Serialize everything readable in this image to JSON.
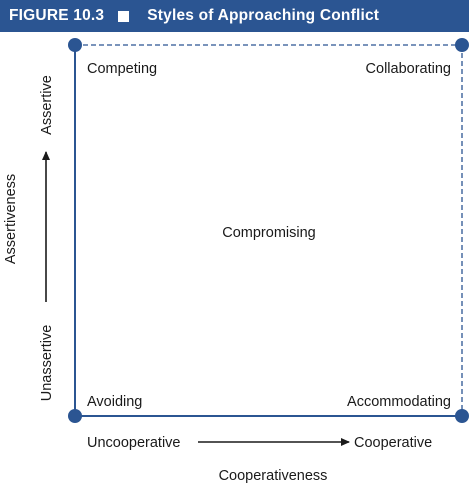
{
  "header": {
    "figure_label": "FIGURE 10.3",
    "title": "Styles of Approaching Conflict",
    "square_icon": "filled-square-icon",
    "background": "#2b5592"
  },
  "quadrants": {
    "top_left": "Competing",
    "top_right": "Collaborating",
    "center": "Compromising",
    "bottom_left": "Avoiding",
    "bottom_right": "Accommodating"
  },
  "axes": {
    "x_low": "Uncooperative",
    "x_high": "Cooperative",
    "x_title": "Cooperativeness",
    "y_low": "Unassertive",
    "y_high": "Assertive",
    "y_title": "Assertiveness"
  },
  "colors": {
    "frame": "#2b5592",
    "dot": "#2b5592",
    "text": "#1a1a1a"
  }
}
